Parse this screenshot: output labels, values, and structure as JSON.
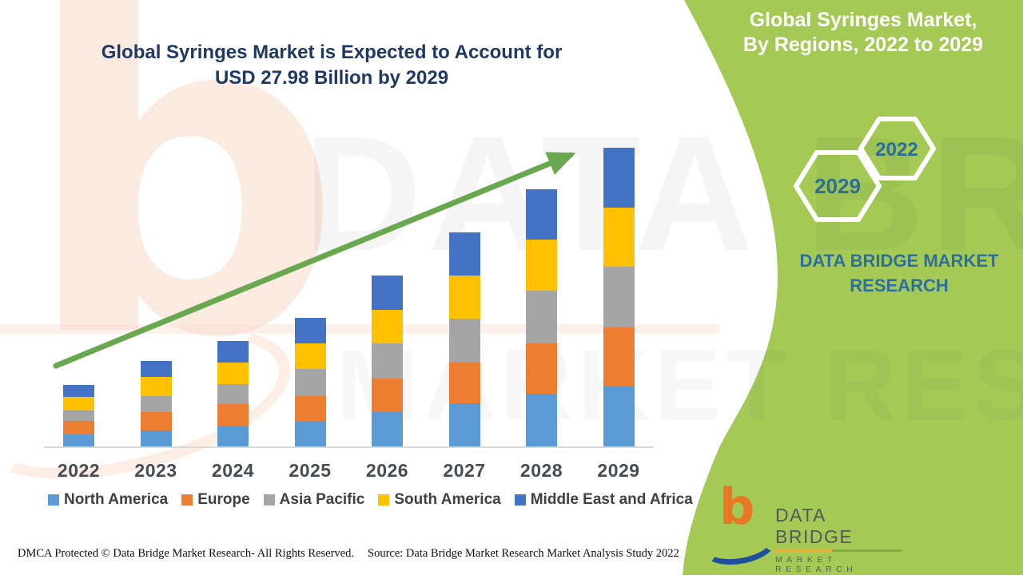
{
  "title": {
    "line1": "Global Syringes Market is Expected to Account for",
    "line2": "USD 27.98 Billion by 2029"
  },
  "side_panel": {
    "heading_line1": "Global Syringes Market,",
    "heading_line2": "By Regions, 2022 to 2029",
    "hexagons": [
      {
        "label": "2029"
      },
      {
        "label": "2022"
      }
    ],
    "brand_text": "DATA BRIDGE MARKET RESEARCH",
    "green_color": "#a4c954",
    "text_color": "#2d6f9f"
  },
  "watermark": {
    "letter": "b",
    "line1": "DATA BRIDGE",
    "line2": "MARKET RESEARCH"
  },
  "chart_data": {
    "type": "bar",
    "stacked": true,
    "unit": "USD Billion",
    "categories": [
      "2022",
      "2023",
      "2024",
      "2025",
      "2026",
      "2027",
      "2028",
      "2029"
    ],
    "series": [
      {
        "name": "North America",
        "color": "#5B9BD5",
        "values": [
          1.1,
          1.5,
          1.9,
          2.4,
          3.2,
          4.0,
          4.9,
          5.6
        ]
      },
      {
        "name": "Europe",
        "color": "#ED7D31",
        "values": [
          1.3,
          1.7,
          2.1,
          2.3,
          3.1,
          3.8,
          4.7,
          5.5
        ]
      },
      {
        "name": "Asia Pacific",
        "color": "#A5A5A5",
        "values": [
          1.0,
          1.5,
          1.9,
          2.5,
          3.3,
          4.1,
          4.9,
          5.7
        ]
      },
      {
        "name": "South America",
        "color": "#FFC000",
        "values": [
          1.3,
          1.8,
          2.0,
          2.4,
          3.1,
          4.0,
          4.8,
          5.5
        ]
      },
      {
        "name": "Middle East and Africa",
        "color": "#4472C4",
        "values": [
          1.1,
          1.5,
          2.0,
          2.4,
          3.2,
          4.0,
          4.7,
          5.6
        ]
      }
    ],
    "totals_estimated": [
      5.8,
      8.0,
      9.9,
      12.0,
      15.9,
      19.9,
      24.0,
      27.98
    ],
    "ylim": [
      0,
      28
    ],
    "gridlines": false,
    "legend_position": "bottom",
    "annotation": "green upward trend arrow from 2022 to 2029"
  },
  "footer": {
    "left": "DMCA Protected © Data Bridge Market Research- All Rights Reserved.",
    "right": "Source: Data Bridge Market Research Market Analysis Study 2022"
  },
  "logo": {
    "letter": "b",
    "name": "DATA BRIDGE",
    "sub": "MARKET RESEARCH"
  }
}
